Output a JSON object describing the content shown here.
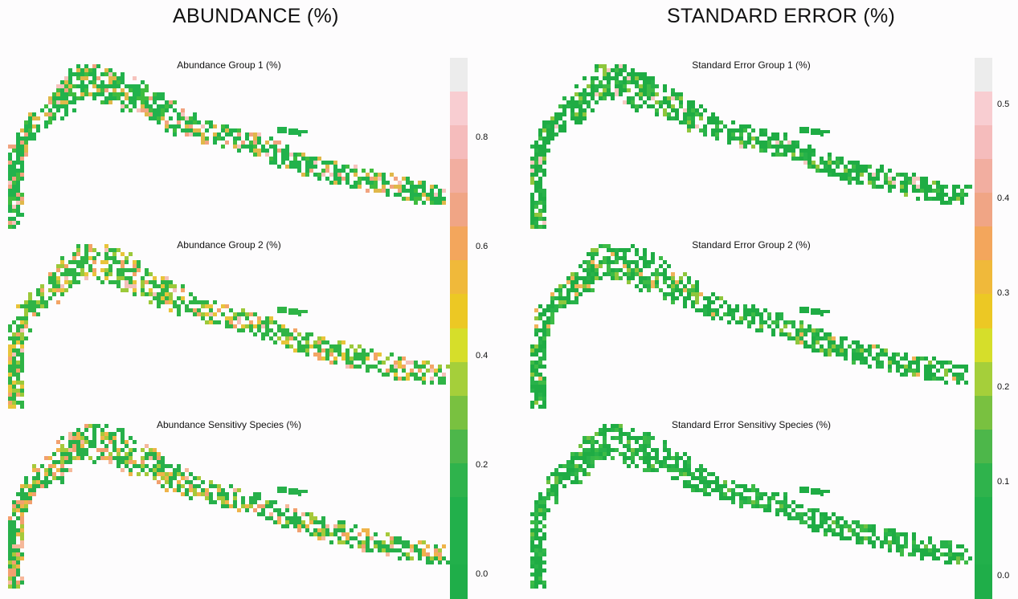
{
  "headings": {
    "left": "ABUNDANCE (%)",
    "right": "STANDARD ERROR (%)"
  },
  "maps": {
    "left": [
      {
        "title": "Abundance Group 1 (%)",
        "palette": [
          "#22b24c",
          "#3fbc3f",
          "#e0b84a",
          "#f1a37f",
          "#f6c3bd"
        ]
      },
      {
        "title": "Abundance Group 2 (%)",
        "palette": [
          "#2fb446",
          "#9cc93a",
          "#e8c43a",
          "#f3a566",
          "#f3c0b8"
        ]
      },
      {
        "title": "Abundance Sensitivy Species (%)",
        "palette": [
          "#27b04a",
          "#a6c93a",
          "#efb44a",
          "#f2a06f",
          "#f5b89a"
        ]
      }
    ],
    "right": [
      {
        "title": "Standard Error Group 1 (%)",
        "palette": [
          "#1fac44",
          "#28b24a",
          "#3dbb46",
          "#8ec63c",
          "#f5c8c0"
        ]
      },
      {
        "title": "Standard Error Group 2 (%)",
        "palette": [
          "#1fac44",
          "#28b24a",
          "#3dbb46",
          "#8ec63c",
          "#f0b35a"
        ]
      },
      {
        "title": "Standard Error Sensitivy Species (%)",
        "palette": [
          "#1fac44",
          "#28b24a",
          "#35b849",
          "#3dbb46",
          "#6ec141"
        ]
      }
    ]
  },
  "legends": {
    "left": {
      "colors": [
        "#ececec",
        "#f8cdd1",
        "#f5bcbc",
        "#f2aea0",
        "#f0a585",
        "#f3a65c",
        "#f0b93a",
        "#ecc824",
        "#d6de2a",
        "#a5cf3a",
        "#79c140",
        "#4db74a",
        "#2fb34c",
        "#22b04b",
        "#22b04b",
        "#1fae49"
      ],
      "ticks": [
        "0.8",
        "0.6",
        "0.4",
        "0.2",
        "0.0"
      ]
    },
    "right": {
      "colors": [
        "#ececec",
        "#f8cdd1",
        "#f5bcbc",
        "#f2aea0",
        "#f0a585",
        "#f3a65c",
        "#f0b93a",
        "#ecc824",
        "#d6de2a",
        "#a5cf3a",
        "#79c140",
        "#4db74a",
        "#2fb34c",
        "#22b04b",
        "#22b04b",
        "#1fae49"
      ],
      "ticks": [
        "0.5",
        "0.4",
        "0.3",
        "0.2",
        "0.1",
        "0.0"
      ]
    }
  }
}
